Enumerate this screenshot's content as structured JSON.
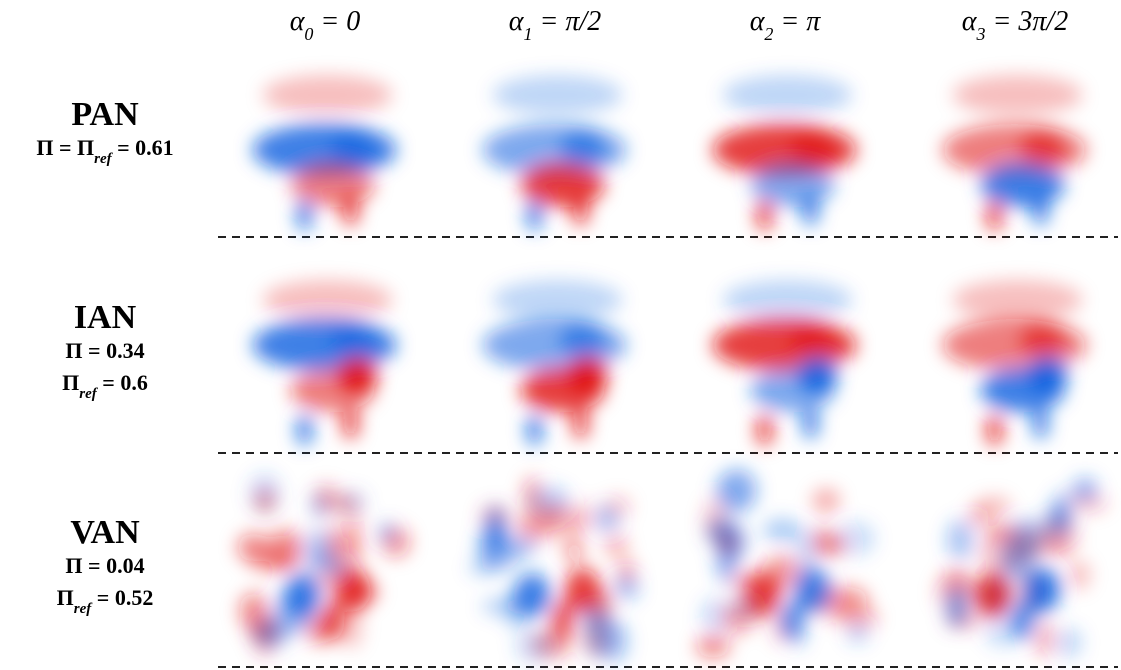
{
  "columns": [
    [
      "α",
      "0",
      " = 0"
    ],
    [
      "α",
      "1",
      " = π/2"
    ],
    [
      "α",
      "2",
      " = π"
    ],
    [
      "α",
      "3",
      " = 3π/2"
    ]
  ],
  "rows": [
    {
      "name": "PAN",
      "lines": [
        [
          "Π = Π",
          "ref",
          " = 0.61"
        ]
      ]
    },
    {
      "name": "IAN",
      "lines": [
        [
          "Π = 0.34"
        ],
        [
          "Π",
          "ref",
          " = 0.6"
        ]
      ]
    },
    {
      "name": "VAN",
      "lines": [
        [
          "Π = 0.04"
        ],
        [
          "Π",
          "ref",
          " = 0.52"
        ]
      ]
    }
  ]
}
